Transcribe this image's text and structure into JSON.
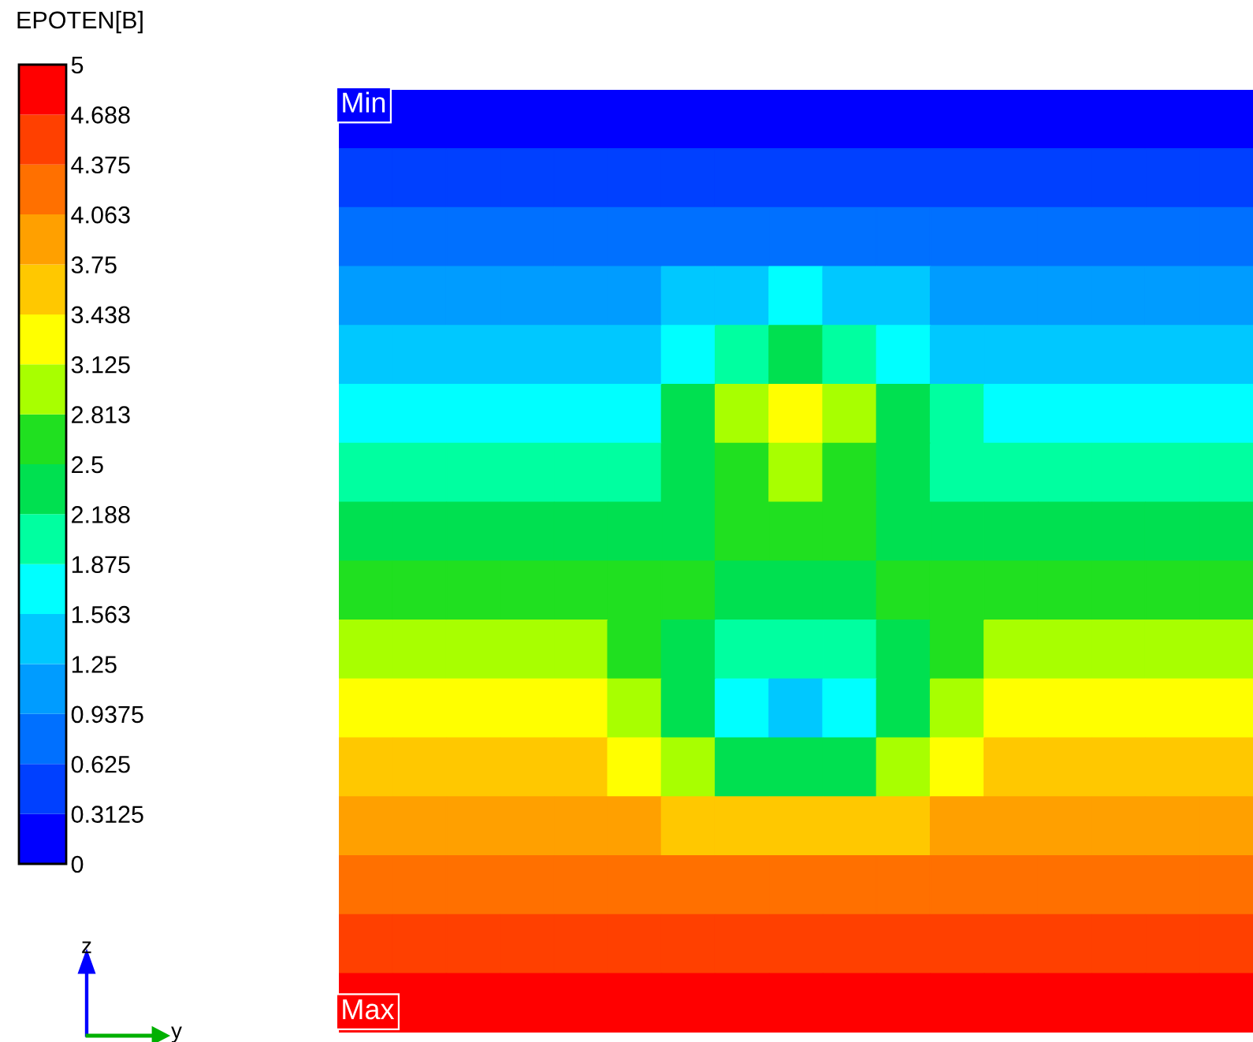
{
  "chart_data": {
    "type": "heatmap",
    "clabel": "EPOTEN[B]",
    "clim": [
      0,
      5
    ],
    "cticks": [
      0,
      {
        "value": 0.3125,
        "label": "0.3125"
      },
      {
        "value": 0.625,
        "label": "0.625"
      },
      {
        "value": 0.9375,
        "label": "0.9375"
      },
      {
        "value": 1.25,
        "label": "1.25"
      },
      {
        "value": 1.5625,
        "label": "1.563"
      },
      {
        "value": 1.875,
        "label": "1.875"
      },
      {
        "value": 2.1875,
        "label": "2.188"
      },
      {
        "value": 2.5,
        "label": "2.5"
      },
      {
        "value": 2.8125,
        "label": "2.813"
      },
      {
        "value": 3.125,
        "label": "3.125"
      },
      {
        "value": 3.4375,
        "label": "3.438"
      },
      {
        "value": 3.75,
        "label": "3.75"
      },
      {
        "value": 4.0625,
        "label": "4.063"
      },
      {
        "value": 4.375,
        "label": "4.375"
      },
      {
        "value": 4.6875,
        "label": "4.688"
      },
      5
    ],
    "categories": [
      null,
      null,
      null,
      null,
      null,
      null,
      null,
      null,
      null,
      null,
      null,
      null,
      null,
      null,
      null,
      null,
      null
    ],
    "y_categories": [
      null,
      null,
      null,
      null,
      null,
      null,
      null,
      null,
      null,
      null,
      null,
      null,
      null,
      null,
      null,
      null
    ],
    "tick_labels": false,
    "annotations": [
      "Min",
      "Max",
      "z",
      "y"
    ],
    "cells": [
      [
        0.15,
        0.15,
        0.15,
        0.15,
        0.15,
        0.15,
        0.15,
        0.15,
        0.15,
        0.15,
        0.15,
        0.15,
        0.15,
        0.15,
        0.15,
        0.15,
        0.15
      ],
      [
        0.45,
        0.45,
        0.45,
        0.45,
        0.45,
        0.45,
        0.45,
        0.45,
        0.45,
        0.45,
        0.45,
        0.45,
        0.45,
        0.45,
        0.45,
        0.45,
        0.45
      ],
      [
        0.8,
        0.8,
        0.8,
        0.8,
        0.8,
        0.8,
        0.8,
        0.8,
        0.8,
        0.8,
        0.8,
        0.8,
        0.8,
        0.8,
        0.8,
        0.8,
        0.8
      ],
      [
        1.1,
        1.1,
        1.1,
        1.1,
        1.1,
        1.1,
        1.4,
        1.4,
        1.7,
        1.4,
        1.4,
        1.1,
        1.1,
        1.1,
        1.1,
        1.1,
        1.1
      ],
      [
        1.4,
        1.4,
        1.4,
        1.4,
        1.4,
        1.4,
        1.7,
        2.0,
        2.35,
        2.0,
        1.7,
        1.4,
        1.4,
        1.4,
        1.4,
        1.4,
        1.4
      ],
      [
        1.7,
        1.7,
        1.7,
        1.7,
        1.7,
        1.7,
        2.35,
        2.95,
        3.3,
        2.95,
        2.35,
        2.0,
        1.7,
        1.7,
        1.7,
        1.7,
        1.7
      ],
      [
        2.0,
        2.0,
        2.0,
        2.0,
        2.0,
        2.0,
        2.35,
        2.65,
        2.95,
        2.65,
        2.35,
        2.0,
        2.0,
        2.0,
        2.0,
        2.0,
        2.0
      ],
      [
        2.35,
        2.35,
        2.35,
        2.35,
        2.35,
        2.35,
        2.35,
        2.65,
        2.65,
        2.65,
        2.35,
        2.35,
        2.35,
        2.35,
        2.35,
        2.35,
        2.35
      ],
      [
        2.65,
        2.65,
        2.65,
        2.65,
        2.65,
        2.65,
        2.65,
        2.35,
        2.35,
        2.35,
        2.65,
        2.65,
        2.65,
        2.65,
        2.65,
        2.65,
        2.65
      ],
      [
        2.95,
        2.95,
        2.95,
        2.95,
        2.95,
        2.65,
        2.35,
        2.0,
        2.0,
        2.0,
        2.35,
        2.65,
        2.95,
        2.95,
        2.95,
        2.95,
        2.95
      ],
      [
        3.3,
        3.3,
        3.3,
        3.3,
        3.3,
        2.95,
        2.35,
        1.7,
        1.4,
        1.7,
        2.35,
        2.95,
        3.3,
        3.3,
        3.3,
        3.3,
        3.3
      ],
      [
        3.6,
        3.6,
        3.6,
        3.6,
        3.6,
        3.3,
        2.95,
        2.35,
        2.35,
        2.35,
        2.95,
        3.3,
        3.6,
        3.6,
        3.6,
        3.6,
        3.6
      ],
      [
        3.9,
        3.9,
        3.9,
        3.9,
        3.9,
        3.9,
        3.6,
        3.6,
        3.6,
        3.6,
        3.6,
        3.9,
        3.9,
        3.9,
        3.9,
        3.9,
        3.9
      ],
      [
        4.2,
        4.2,
        4.2,
        4.2,
        4.2,
        4.2,
        4.2,
        4.2,
        4.2,
        4.2,
        4.2,
        4.2,
        4.2,
        4.2,
        4.2,
        4.2,
        4.2
      ],
      [
        4.55,
        4.55,
        4.55,
        4.55,
        4.55,
        4.55,
        4.55,
        4.55,
        4.55,
        4.55,
        4.55,
        4.55,
        4.55,
        4.55,
        4.55,
        4.55,
        4.55
      ],
      [
        4.85,
        4.85,
        4.85,
        4.85,
        4.85,
        4.85,
        4.85,
        4.85,
        4.85,
        4.85,
        4.85,
        4.85,
        4.85,
        4.85,
        4.85,
        4.85,
        4.85
      ]
    ]
  }
}
